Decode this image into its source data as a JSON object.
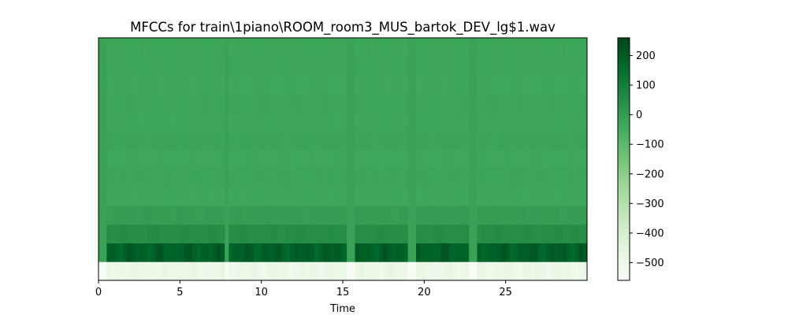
{
  "chart_data": {
    "type": "heatmap",
    "title": "MFCCs for train\\1piano\\ROOM_room3_MUS_bartok_DEV_lg$1.wav",
    "xlabel": "Time",
    "ylabel": "",
    "xlim": [
      0,
      30
    ],
    "x_ticks": [
      0,
      5,
      10,
      15,
      20,
      25
    ],
    "x_tick_labels": [
      "0",
      "5",
      "10",
      "15",
      "20",
      "25"
    ],
    "colormap": "Greens",
    "colorbar": {
      "vmin": -560,
      "vmax": 260,
      "ticks": [
        200,
        100,
        0,
        -100,
        -200,
        -300,
        -400,
        -500
      ],
      "tick_labels": [
        "200",
        "100",
        "0",
        "−100",
        "−200",
        "−300",
        "−400",
        "−500"
      ]
    },
    "n_coefficients": 13,
    "coefficient_rows": [
      {
        "coefficient": 0,
        "typical_value": -520,
        "active_value": -470
      },
      {
        "coefficient": 1,
        "typical_value": 160,
        "active_value": 225
      },
      {
        "coefficient": 2,
        "typical_value": 40,
        "active_value": 55
      },
      {
        "coefficient": 3,
        "typical_value": -10,
        "active_value": 0
      },
      {
        "coefficient": 4,
        "typical_value": -35,
        "active_value": -30
      },
      {
        "coefficient": 5,
        "typical_value": -30,
        "active_value": -25
      },
      {
        "coefficient": 6,
        "typical_value": -38,
        "active_value": -32
      },
      {
        "coefficient": 7,
        "typical_value": -28,
        "active_value": -24
      },
      {
        "coefficient": 8,
        "typical_value": -34,
        "active_value": -30
      },
      {
        "coefficient": 9,
        "typical_value": -30,
        "active_value": -26
      },
      {
        "coefficient": 10,
        "typical_value": -36,
        "active_value": -31
      },
      {
        "coefficient": 11,
        "typical_value": -30,
        "active_value": -27
      },
      {
        "coefficient": 12,
        "typical_value": -33,
        "active_value": -29
      }
    ],
    "silent_intervals": [
      [
        0,
        0.55
      ],
      [
        7.7,
        8.1
      ],
      [
        15.3,
        15.8
      ],
      [
        19.1,
        19.5
      ],
      [
        22.8,
        23.3
      ]
    ],
    "silent_value": -20
  }
}
